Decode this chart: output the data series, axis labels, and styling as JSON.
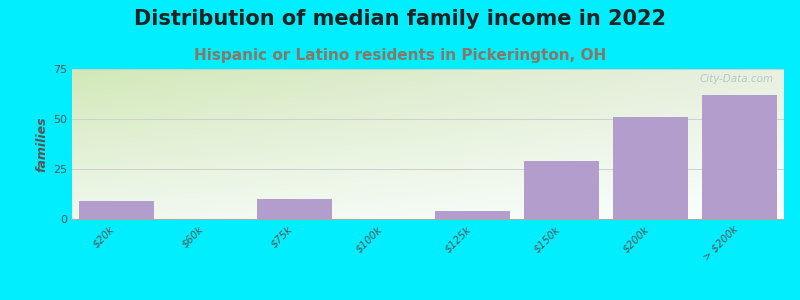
{
  "title": "Distribution of median family income in 2022",
  "subtitle": "Hispanic or Latino residents in Pickerington, OH",
  "categories": [
    "$20k",
    "$60k",
    "$75k",
    "$100k",
    "$125k",
    "$150k",
    "$200k",
    "> $200k"
  ],
  "values": [
    9,
    0,
    10,
    0,
    4,
    29,
    51,
    62
  ],
  "bar_color": "#b39dcc",
  "background_color": "#00eeff",
  "grad_top_left": "#d8eacc",
  "grad_top_right": "#eaf0e8",
  "grad_bottom": "#f8fbf6",
  "ylabel": "families",
  "yticks": [
    0,
    25,
    50,
    75
  ],
  "ylim": [
    0,
    75
  ],
  "title_fontsize": 15,
  "subtitle_fontsize": 11,
  "subtitle_color": "#887766",
  "watermark": "City-Data.com",
  "grid_color": "#cccccc",
  "title_color": "#222222"
}
